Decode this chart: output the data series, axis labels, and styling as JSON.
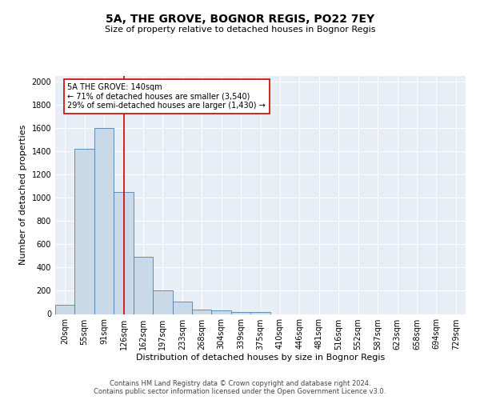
{
  "title": "5A, THE GROVE, BOGNOR REGIS, PO22 7EY",
  "subtitle": "Size of property relative to detached houses in Bognor Regis",
  "xlabel": "Distribution of detached houses by size in Bognor Regis",
  "ylabel": "Number of detached properties",
  "bin_labels": [
    "20sqm",
    "55sqm",
    "91sqm",
    "126sqm",
    "162sqm",
    "197sqm",
    "233sqm",
    "268sqm",
    "304sqm",
    "339sqm",
    "375sqm",
    "410sqm",
    "446sqm",
    "481sqm",
    "516sqm",
    "552sqm",
    "587sqm",
    "623sqm",
    "658sqm",
    "694sqm",
    "729sqm"
  ],
  "bar_heights": [
    80,
    1420,
    1600,
    1050,
    490,
    205,
    105,
    40,
    30,
    20,
    15,
    0,
    0,
    0,
    0,
    0,
    0,
    0,
    0,
    0,
    0
  ],
  "bar_color": "#c9d9e8",
  "bar_edge_color": "#4d7fad",
  "property_line_color": "#cc0000",
  "property_line_bin": 3,
  "annotation_line1": "5A THE GROVE: 140sqm",
  "annotation_line2": "← 71% of detached houses are smaller (3,540)",
  "annotation_line3": "29% of semi-detached houses are larger (1,430) →",
  "annotation_box_color": "#ffffff",
  "annotation_box_edge": "#cc0000",
  "ylim": [
    0,
    2050
  ],
  "yticks": [
    0,
    200,
    400,
    600,
    800,
    1000,
    1200,
    1400,
    1600,
    1800,
    2000
  ],
  "plot_bg_color": "#e8eef5",
  "footer_text": "Contains HM Land Registry data © Crown copyright and database right 2024.\nContains public sector information licensed under the Open Government Licence v3.0.",
  "title_fontsize": 10,
  "subtitle_fontsize": 8,
  "xlabel_fontsize": 8,
  "ylabel_fontsize": 8,
  "tick_fontsize": 7,
  "annotation_fontsize": 7,
  "footer_fontsize": 6
}
